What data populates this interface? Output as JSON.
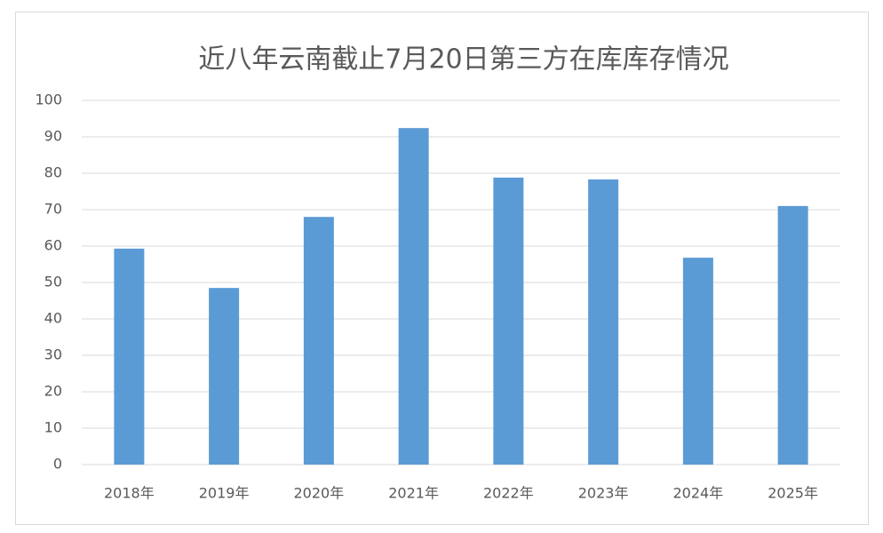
{
  "chart_data": {
    "type": "bar",
    "title": "近八年云南截止7月20日第三方在库库存情况",
    "categories": [
      "2018年",
      "2019年",
      "2020年",
      "2021年",
      "2022年",
      "2023年",
      "2024年",
      "2025年"
    ],
    "values": [
      59.3,
      48.5,
      68,
      92.4,
      78.8,
      78.3,
      56.8,
      71
    ],
    "color": "#5b9bd5",
    "ylim": [
      0,
      100
    ],
    "yticks": [
      0,
      10,
      20,
      30,
      40,
      50,
      60,
      70,
      80,
      90,
      100
    ],
    "grid": true
  }
}
